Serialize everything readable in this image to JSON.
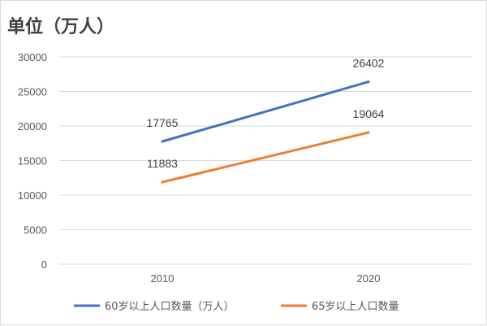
{
  "chart_data": {
    "type": "line",
    "title": "单位（万人）",
    "xlabel": "",
    "ylabel": "",
    "categories": [
      "2010",
      "2020"
    ],
    "ylim": [
      0,
      30000
    ],
    "yticks": [
      0,
      5000,
      10000,
      15000,
      20000,
      25000,
      30000
    ],
    "grid": true,
    "legend_position": "bottom",
    "series": [
      {
        "name": "60岁以上人口数量（万人）",
        "values": [
          17765,
          26402
        ],
        "color": "#4472c4"
      },
      {
        "name": "65岁以上人口数量",
        "values": [
          11883,
          19064
        ],
        "color": "#ed7d31"
      }
    ]
  }
}
